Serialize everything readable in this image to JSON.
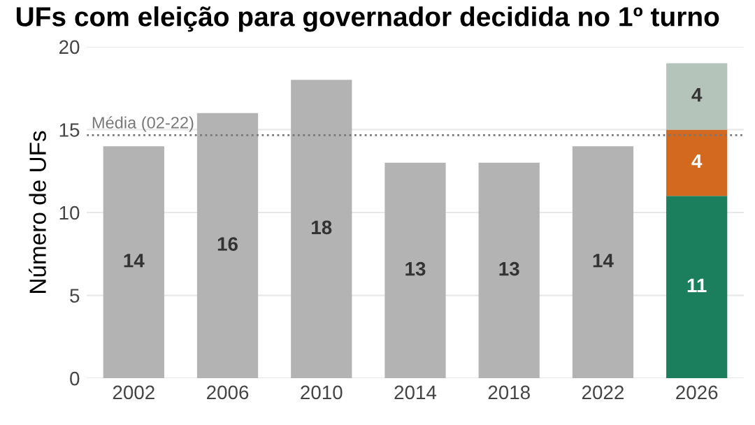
{
  "chart_data": {
    "type": "bar",
    "title": "UFs com eleição para governador decidida no 1º turno",
    "ylabel": "Número de UFs",
    "categories": [
      "2002",
      "2006",
      "2010",
      "2014",
      "2018",
      "2022",
      "2026"
    ],
    "stacked": true,
    "series": [
      {
        "color": "#b3b3b3",
        "values": [
          14,
          16,
          18,
          13,
          13,
          14,
          null
        ]
      },
      {
        "color": "#1b7f5e",
        "values": [
          null,
          null,
          null,
          null,
          null,
          null,
          11
        ]
      },
      {
        "color": "#d2691e",
        "values": [
          null,
          null,
          null,
          null,
          null,
          null,
          4
        ]
      },
      {
        "color": "#b5c4bb",
        "values": [
          null,
          null,
          null,
          null,
          null,
          null,
          4
        ]
      }
    ],
    "ylim": [
      0,
      20
    ],
    "yticks": [
      0,
      5,
      10,
      15,
      20
    ],
    "grid": "y",
    "data_labels": true,
    "ref_lines": [
      {
        "axis": "y",
        "value": 14.67,
        "label": "Média (02-22)",
        "color": "#777777",
        "line_style": "dotted"
      }
    ]
  }
}
